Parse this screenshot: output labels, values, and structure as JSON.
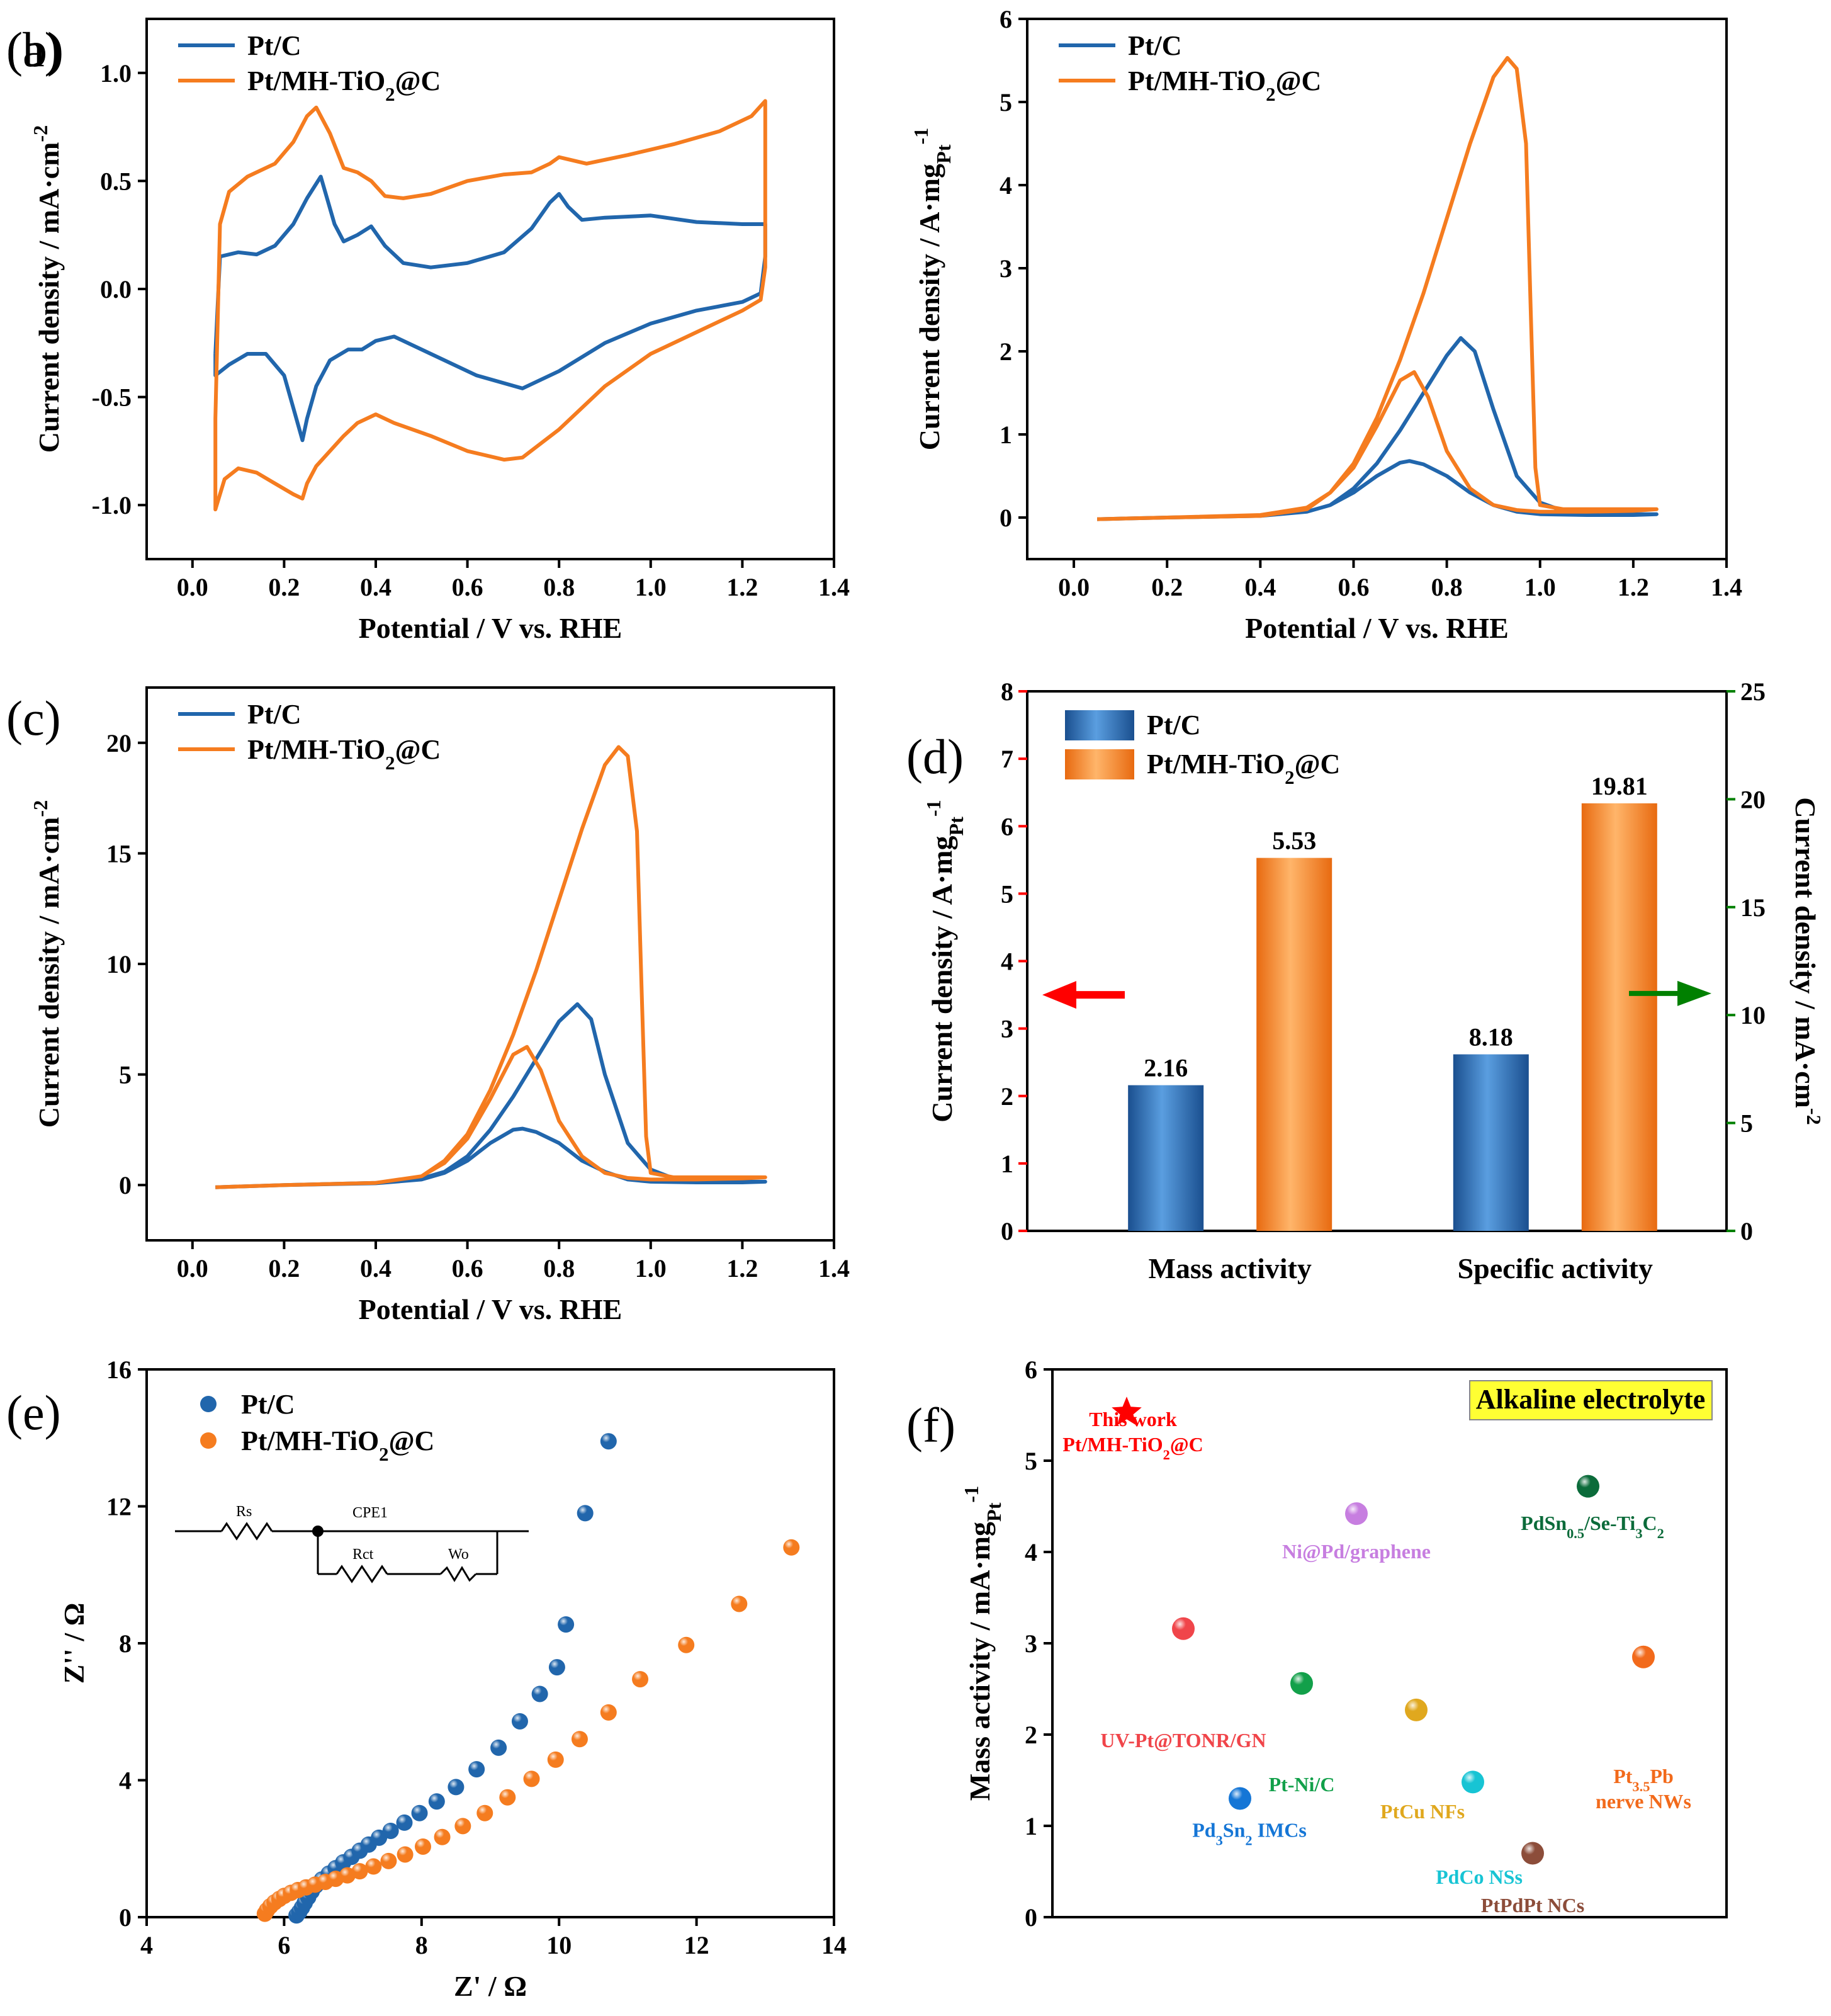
{
  "colors": {
    "blue": "#2166ac",
    "orange": "#f57c1f",
    "red": "#ff0000",
    "green": "#008000"
  },
  "chart_data": [
    {
      "panel": "(a)",
      "type": "line",
      "xlabel": "Potential / V vs. RHE",
      "ylabel": "Current density / mA·cm⁻²",
      "xlim": [
        -0.1,
        1.4
      ],
      "ylim": [
        -1.25,
        1.25
      ],
      "xticks": [
        0.0,
        0.2,
        0.4,
        0.6,
        0.8,
        1.0,
        1.2,
        1.4
      ],
      "xtick_labels": [
        "0.0",
        "0.2",
        "0.4",
        "0.6",
        "0.8",
        "1.0",
        "1.2",
        "1.4"
      ],
      "yticks": [
        -1.0,
        -0.5,
        0.0,
        0.5,
        1.0
      ],
      "ytick_labels": [
        "-1.0",
        "-0.5",
        "0.0",
        "0.5",
        "1.0"
      ],
      "legend": [
        "Pt/C",
        "Pt/MH-TiO₂@C"
      ],
      "series": [
        {
          "name": "Pt/C",
          "color": "#2166ac",
          "x": [
            0.05,
            0.06,
            0.1,
            0.14,
            0.18,
            0.22,
            0.25,
            0.28,
            0.31,
            0.33,
            0.36,
            0.39,
            0.42,
            0.46,
            0.52,
            0.6,
            0.68,
            0.74,
            0.78,
            0.8,
            0.82,
            0.85,
            0.9,
            1.0,
            1.1,
            1.2,
            1.24,
            1.25,
            1.25,
            1.24,
            1.2,
            1.1,
            1.0,
            0.9,
            0.8,
            0.72,
            0.62,
            0.52,
            0.44,
            0.4,
            0.37,
            0.34,
            0.3,
            0.27,
            0.25,
            0.24,
            0.22,
            0.2,
            0.16,
            0.12,
            0.08,
            0.05,
            0.05
          ],
          "y": [
            -0.3,
            0.15,
            0.17,
            0.16,
            0.2,
            0.3,
            0.42,
            0.52,
            0.3,
            0.22,
            0.25,
            0.29,
            0.2,
            0.12,
            0.1,
            0.12,
            0.17,
            0.28,
            0.4,
            0.44,
            0.38,
            0.32,
            0.33,
            0.34,
            0.31,
            0.3,
            0.3,
            0.3,
            0.15,
            -0.02,
            -0.06,
            -0.1,
            -0.16,
            -0.25,
            -0.38,
            -0.46,
            -0.4,
            -0.3,
            -0.22,
            -0.24,
            -0.28,
            -0.28,
            -0.33,
            -0.45,
            -0.6,
            -0.7,
            -0.55,
            -0.4,
            -0.3,
            -0.3,
            -0.35,
            -0.4,
            -0.3
          ]
        },
        {
          "name": "Pt/MH-TiO₂@C",
          "color": "#f57c1f",
          "x": [
            0.05,
            0.06,
            0.08,
            0.12,
            0.18,
            0.22,
            0.25,
            0.27,
            0.3,
            0.33,
            0.36,
            0.39,
            0.42,
            0.46,
            0.52,
            0.6,
            0.68,
            0.74,
            0.78,
            0.8,
            0.82,
            0.86,
            0.95,
            1.05,
            1.15,
            1.22,
            1.25,
            1.25,
            1.24,
            1.2,
            1.1,
            1.0,
            0.9,
            0.8,
            0.72,
            0.68,
            0.6,
            0.52,
            0.44,
            0.4,
            0.36,
            0.33,
            0.3,
            0.27,
            0.25,
            0.24,
            0.22,
            0.18,
            0.14,
            0.1,
            0.07,
            0.05,
            0.05
          ],
          "y": [
            -0.6,
            0.3,
            0.45,
            0.52,
            0.58,
            0.68,
            0.8,
            0.84,
            0.72,
            0.56,
            0.54,
            0.5,
            0.43,
            0.42,
            0.44,
            0.5,
            0.53,
            0.54,
            0.58,
            0.61,
            0.6,
            0.58,
            0.62,
            0.67,
            0.73,
            0.8,
            0.87,
            0.1,
            -0.05,
            -0.1,
            -0.2,
            -0.3,
            -0.45,
            -0.65,
            -0.78,
            -0.79,
            -0.75,
            -0.68,
            -0.62,
            -0.58,
            -0.62,
            -0.68,
            -0.75,
            -0.82,
            -0.9,
            -0.97,
            -0.95,
            -0.9,
            -0.85,
            -0.83,
            -0.88,
            -1.02,
            -0.6
          ]
        }
      ]
    },
    {
      "panel": "(b)",
      "type": "line",
      "xlabel": "Potential / V vs. RHE",
      "ylabel": "Current density / A·mgPt⁻¹",
      "xlim": [
        -0.1,
        1.4
      ],
      "ylim": [
        -0.5,
        6
      ],
      "xticks": [
        0.0,
        0.2,
        0.4,
        0.6,
        0.8,
        1.0,
        1.2,
        1.4
      ],
      "xtick_labels": [
        "0.0",
        "0.2",
        "0.4",
        "0.6",
        "0.8",
        "1.0",
        "1.2",
        "1.4"
      ],
      "yticks": [
        0,
        1,
        2,
        3,
        4,
        5,
        6
      ],
      "ytick_labels": [
        "0",
        "1",
        "2",
        "3",
        "4",
        "5",
        "6"
      ],
      "legend": [
        "Pt/C",
        "Pt/MH-TiO₂@C"
      ],
      "series": [
        {
          "name": "Pt/C",
          "color": "#2166ac",
          "x": [
            0.05,
            0.2,
            0.4,
            0.5,
            0.55,
            0.6,
            0.65,
            0.7,
            0.75,
            0.8,
            0.83,
            0.86,
            0.9,
            0.95,
            1.0,
            1.05,
            1.1,
            1.2,
            1.25,
            1.25,
            1.2,
            1.1,
            1.0,
            0.95,
            0.9,
            0.85,
            0.8,
            0.75,
            0.72,
            0.7,
            0.65,
            0.6,
            0.55,
            0.5,
            0.4,
            0.2,
            0.05
          ],
          "y": [
            -0.02,
            0.0,
            0.02,
            0.07,
            0.15,
            0.35,
            0.65,
            1.05,
            1.5,
            1.95,
            2.16,
            2.0,
            1.3,
            0.5,
            0.18,
            0.08,
            0.05,
            0.04,
            0.04,
            0.04,
            0.03,
            0.03,
            0.04,
            0.07,
            0.15,
            0.3,
            0.5,
            0.64,
            0.68,
            0.66,
            0.5,
            0.3,
            0.15,
            0.07,
            0.02,
            0.0,
            -0.02
          ]
        },
        {
          "name": "Pt/MH-TiO₂@C",
          "color": "#f57c1f",
          "x": [
            0.05,
            0.2,
            0.4,
            0.5,
            0.55,
            0.6,
            0.65,
            0.7,
            0.75,
            0.8,
            0.85,
            0.9,
            0.93,
            0.95,
            0.97,
            0.98,
            0.99,
            1.0,
            1.05,
            1.1,
            1.2,
            1.25,
            1.25,
            1.2,
            1.1,
            1.0,
            0.95,
            0.9,
            0.85,
            0.8,
            0.76,
            0.73,
            0.7,
            0.65,
            0.6,
            0.55,
            0.5,
            0.4,
            0.2,
            0.05
          ],
          "y": [
            -0.02,
            0.0,
            0.02,
            0.1,
            0.3,
            0.65,
            1.2,
            1.9,
            2.7,
            3.6,
            4.5,
            5.3,
            5.53,
            5.4,
            4.5,
            2.5,
            0.6,
            0.15,
            0.1,
            0.1,
            0.1,
            0.1,
            0.1,
            0.08,
            0.07,
            0.07,
            0.09,
            0.15,
            0.35,
            0.8,
            1.45,
            1.75,
            1.65,
            1.1,
            0.6,
            0.3,
            0.12,
            0.03,
            0.0,
            -0.02
          ]
        }
      ]
    },
    {
      "panel": "(c)",
      "type": "line",
      "xlabel": "Potential / V vs. RHE",
      "ylabel": "Current density / mA·cm⁻²",
      "xlim": [
        -0.1,
        1.4
      ],
      "ylim": [
        -2.5,
        22.5
      ],
      "xticks": [
        0.0,
        0.2,
        0.4,
        0.6,
        0.8,
        1.0,
        1.2,
        1.4
      ],
      "xtick_labels": [
        "0.0",
        "0.2",
        "0.4",
        "0.6",
        "0.8",
        "1.0",
        "1.2",
        "1.4"
      ],
      "yticks": [
        0,
        5,
        10,
        15,
        20
      ],
      "ytick_labels": [
        "0",
        "5",
        "10",
        "15",
        "20"
      ],
      "legend": [
        "Pt/C",
        "Pt/MH-TiO₂@C"
      ],
      "series": [
        {
          "name": "Pt/C",
          "color": "#2166ac",
          "x": [
            0.05,
            0.2,
            0.4,
            0.5,
            0.55,
            0.6,
            0.65,
            0.7,
            0.75,
            0.8,
            0.84,
            0.87,
            0.9,
            0.95,
            1.0,
            1.05,
            1.1,
            1.2,
            1.25,
            1.25,
            1.2,
            1.1,
            1.0,
            0.95,
            0.9,
            0.85,
            0.8,
            0.75,
            0.72,
            0.7,
            0.65,
            0.6,
            0.55,
            0.5,
            0.4,
            0.2,
            0.05
          ],
          "y": [
            -0.1,
            0.0,
            0.1,
            0.3,
            0.6,
            1.3,
            2.5,
            4.0,
            5.7,
            7.4,
            8.18,
            7.5,
            5.0,
            1.9,
            0.7,
            0.3,
            0.2,
            0.15,
            0.15,
            0.15,
            0.12,
            0.12,
            0.15,
            0.25,
            0.6,
            1.1,
            1.9,
            2.4,
            2.55,
            2.5,
            1.9,
            1.1,
            0.55,
            0.25,
            0.08,
            0.0,
            -0.1
          ]
        },
        {
          "name": "Pt/MH-TiO₂@C",
          "color": "#f57c1f",
          "x": [
            0.05,
            0.2,
            0.4,
            0.5,
            0.55,
            0.6,
            0.65,
            0.7,
            0.75,
            0.8,
            0.85,
            0.9,
            0.93,
            0.95,
            0.97,
            0.98,
            0.99,
            1.0,
            1.05,
            1.1,
            1.2,
            1.25,
            1.25,
            1.2,
            1.1,
            1.0,
            0.95,
            0.9,
            0.85,
            0.8,
            0.76,
            0.73,
            0.7,
            0.65,
            0.6,
            0.55,
            0.5,
            0.4,
            0.2,
            0.05
          ],
          "y": [
            -0.1,
            0.0,
            0.1,
            0.4,
            1.1,
            2.3,
            4.3,
            6.8,
            9.7,
            12.9,
            16.1,
            19.0,
            19.81,
            19.4,
            16.0,
            9.0,
            2.2,
            0.55,
            0.35,
            0.35,
            0.35,
            0.35,
            0.35,
            0.3,
            0.25,
            0.25,
            0.32,
            0.55,
            1.3,
            2.9,
            5.2,
            6.25,
            5.9,
            3.9,
            2.1,
            1.0,
            0.4,
            0.1,
            0.0,
            -0.1
          ]
        }
      ]
    },
    {
      "panel": "(d)",
      "type": "bar",
      "categories": [
        "Mass activity",
        "Specific activity"
      ],
      "ylabel_left": "Current density / A·mgPt⁻¹",
      "ylabel_right": "Current density / mA·cm⁻²",
      "ylim_left": [
        0,
        8
      ],
      "ylim_right": [
        0,
        25
      ],
      "yticks_left": [
        0,
        1,
        2,
        3,
        4,
        5,
        6,
        7,
        8
      ],
      "ytick_labels_left": [
        "0",
        "1",
        "2",
        "3",
        "4",
        "5",
        "6",
        "7",
        "8"
      ],
      "yticks_right": [
        0,
        5,
        10,
        15,
        20,
        25
      ],
      "ytick_labels_right": [
        "0",
        "5",
        "10",
        "15",
        "20",
        "25"
      ],
      "legend": [
        "Pt/C",
        "Pt/MH-TiO₂@C"
      ],
      "series": [
        {
          "name": "Pt/C",
          "color": "#2166ac",
          "values": [
            2.16,
            8.18
          ],
          "labels": [
            "2.16",
            "8.18"
          ]
        },
        {
          "name": "Pt/MH-TiO₂@C",
          "color": "#f57c1f",
          "values": [
            5.53,
            19.81
          ],
          "labels": [
            "5.53",
            "19.81"
          ]
        }
      ],
      "axis": [
        "left",
        "right"
      ]
    },
    {
      "panel": "(e)",
      "type": "scatter",
      "xlabel": "Z' / Ω",
      "ylabel": "Z'' / Ω",
      "xlim": [
        4,
        14
      ],
      "ylim": [
        0,
        16
      ],
      "xticks": [
        4,
        6,
        8,
        10,
        12,
        14
      ],
      "xtick_labels": [
        "4",
        "6",
        "8",
        "10",
        "12",
        "14"
      ],
      "yticks": [
        0,
        4,
        8,
        12,
        16
      ],
      "ytick_labels": [
        "0",
        "4",
        "8",
        "12",
        "16"
      ],
      "legend": [
        "Pt/C",
        "Pt/MH-TiO₂@C"
      ],
      "circuit_labels": [
        "Rs",
        "CPE1",
        "Rct",
        "Wo"
      ],
      "series": [
        {
          "name": "Pt/C",
          "color": "#2166ac",
          "x": [
            6.18,
            6.22,
            6.26,
            6.3,
            6.35,
            6.4,
            6.46,
            6.55,
            6.65,
            6.75,
            6.86,
            6.98,
            7.1,
            7.23,
            7.38,
            7.55,
            7.75,
            7.97,
            8.22,
            8.5,
            8.8,
            9.12,
            9.43,
            9.72,
            9.97,
            10.1,
            10.38,
            10.72
          ],
          "y": [
            0.05,
            0.15,
            0.28,
            0.42,
            0.58,
            0.75,
            0.92,
            1.1,
            1.27,
            1.43,
            1.6,
            1.76,
            1.94,
            2.12,
            2.32,
            2.52,
            2.76,
            3.04,
            3.38,
            3.8,
            4.32,
            4.95,
            5.72,
            6.52,
            7.3,
            8.55,
            11.8,
            13.9
          ]
        },
        {
          "name": "Pt/MH-TiO₂@C",
          "color": "#f57c1f",
          "x": [
            5.72,
            5.75,
            5.8,
            5.86,
            5.93,
            6.0,
            6.1,
            6.2,
            6.32,
            6.45,
            6.6,
            6.75,
            6.92,
            7.1,
            7.3,
            7.52,
            7.76,
            8.02,
            8.3,
            8.6,
            8.92,
            9.25,
            9.6,
            9.95,
            10.3,
            10.72,
            11.18,
            11.85,
            12.62,
            13.38
          ],
          "y": [
            0.1,
            0.2,
            0.32,
            0.43,
            0.53,
            0.62,
            0.71,
            0.79,
            0.87,
            0.95,
            1.03,
            1.12,
            1.22,
            1.34,
            1.48,
            1.64,
            1.83,
            2.06,
            2.34,
            2.66,
            3.04,
            3.5,
            4.04,
            4.6,
            5.2,
            5.98,
            6.95,
            7.95,
            9.15,
            10.8
          ]
        }
      ]
    },
    {
      "panel": "(f)",
      "type": "scatter",
      "ylabel": "Mass activity / mA·mgPt⁻¹",
      "ylim": [
        0,
        6
      ],
      "yticks": [
        0,
        1,
        2,
        3,
        4,
        5,
        6
      ],
      "ytick_labels": [
        "0",
        "1",
        "2",
        "3",
        "4",
        "5",
        "6"
      ],
      "annotation": "Alkaline electrolyte",
      "points": [
        {
          "label": "This work Pt/MH-TiO₂@C",
          "value": 5.53,
          "color": "#ff0000",
          "marker": "star"
        },
        {
          "label": "Ni@Pd/graphene",
          "value": 4.42,
          "color": "#c77ee0"
        },
        {
          "label": "PdSn₀.₅/Se-Ti₃C₂",
          "value": 4.72,
          "color": "#0b6b3a"
        },
        {
          "label": "UV-Pt@TONR/GN",
          "value": 3.16,
          "color": "#f0454a"
        },
        {
          "label": "Pt-Ni/C",
          "value": 2.56,
          "color": "#12a04a"
        },
        {
          "label": "PtCu NFs",
          "value": 2.27,
          "color": "#e0a81e"
        },
        {
          "label": "Pt₃.₅Pb nerve NWs",
          "value": 2.85,
          "color": "#f26a1b"
        },
        {
          "label": "Pd₃Sn₂ IMCs",
          "value": 1.3,
          "color": "#1576d6"
        },
        {
          "label": "PdCo NSs",
          "value": 1.48,
          "color": "#17c4d4"
        },
        {
          "label": "PtPdPt NCs",
          "value": 0.7,
          "color": "#8c4d3a"
        }
      ]
    }
  ]
}
